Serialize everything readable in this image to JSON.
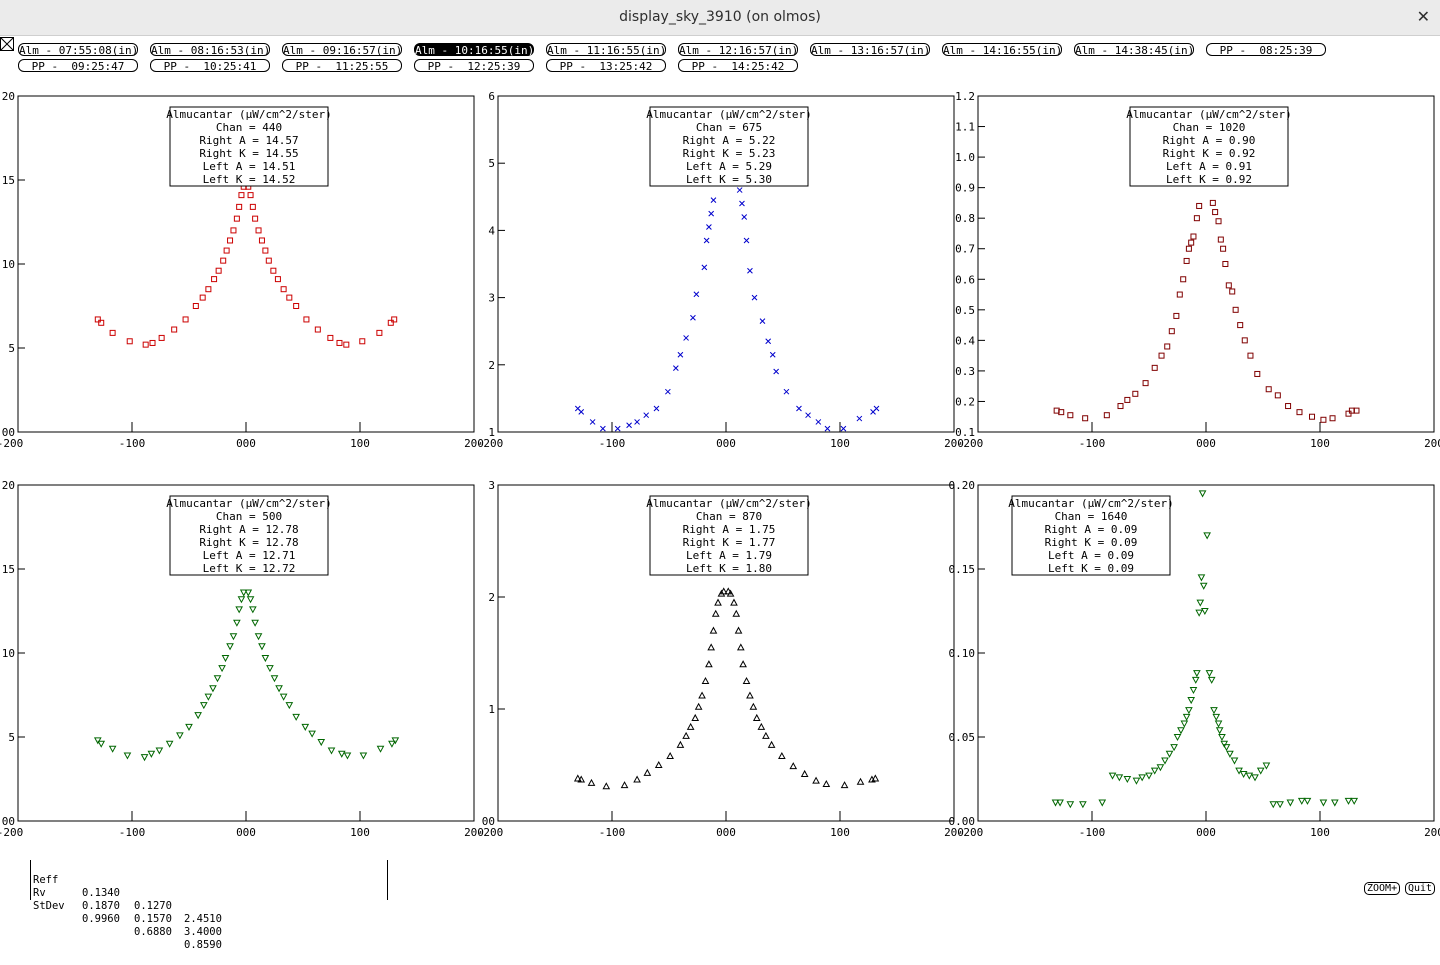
{
  "window": {
    "title": "display_sky_3910 (on olmos)"
  },
  "selector_row1": [
    "Alm - 07:55:08(in)",
    "Alm - 08:16:53(in)",
    "Alm - 09:16:57(in)",
    "Alm - 10:16:55(in)",
    "Alm - 11:16:55(in)",
    "Alm - 12:16:57(in)",
    "Alm - 13:16:57(in)",
    "Alm - 14:16:55(in)",
    "Alm - 14:38:45(in)",
    "PP -  08:25:39"
  ],
  "selector_row2": [
    "PP -  09:25:47",
    "PP -  10:25:41",
    "PP -  11:25:55",
    "PP -  12:25:39",
    "PP -  13:25:42",
    "PP -  14:25:42"
  ],
  "selected_scan": "Alm - 10:16:55(in)",
  "chart_data": [
    {
      "type": "scatter",
      "marker": "square",
      "color": "#cc0000",
      "xlim": [
        -200,
        200
      ],
      "xticks": [
        "-200",
        "-100",
        "000",
        "100",
        "200"
      ],
      "ylim": [
        0,
        20
      ],
      "yticks": [
        "00",
        "5",
        "10",
        "15",
        "20"
      ],
      "ytick_values": [
        0,
        5,
        10,
        15,
        20
      ],
      "legend": [
        "Almucantar (µW/cm^2/ster)",
        "Chan = 440",
        "Right A = 14.57",
        "Right K = 14.55",
        "Left A = 14.51",
        "Left K = 14.52"
      ],
      "x": [
        -130,
        -127,
        -117,
        -102,
        -88,
        -82,
        -74,
        -63,
        -53,
        -44,
        -38,
        -33,
        -28,
        -24,
        -20,
        -17,
        -14,
        -11,
        -8,
        -6,
        -4,
        -2,
        2,
        4,
        6,
        8,
        11,
        14,
        17,
        20,
        24,
        28,
        33,
        38,
        44,
        53,
        63,
        74,
        82,
        88,
        102,
        117,
        127,
        130
      ],
      "y": [
        6.7,
        6.5,
        5.9,
        5.4,
        5.2,
        5.3,
        5.6,
        6.1,
        6.7,
        7.5,
        8.0,
        8.5,
        9.1,
        9.6,
        10.2,
        10.8,
        11.4,
        12.0,
        12.7,
        13.4,
        14.1,
        14.6,
        14.6,
        14.1,
        13.4,
        12.7,
        12.0,
        11.4,
        10.8,
        10.2,
        9.6,
        9.1,
        8.5,
        8.0,
        7.5,
        6.7,
        6.1,
        5.6,
        5.3,
        5.2,
        5.4,
        5.9,
        6.5,
        6.7
      ]
    },
    {
      "type": "scatter",
      "marker": "x",
      "color": "#0000cc",
      "xlim": [
        -200,
        200
      ],
      "xticks": [
        "-200",
        "-100",
        "000",
        "100",
        "200"
      ],
      "ylim": [
        1,
        6
      ],
      "yticks": [
        "1",
        "2",
        "3",
        "4",
        "5",
        "6"
      ],
      "ytick_values": [
        1,
        2,
        3,
        4,
        5,
        6
      ],
      "legend": [
        "Almucantar (µW/cm^2/ster)",
        "Chan = 675",
        "Right A = 5.22",
        "Right K = 5.23",
        "Left A = 5.29",
        "Left K = 5.30"
      ],
      "x": [
        -130,
        -127,
        -117,
        -108,
        -95,
        -85,
        -78,
        -70,
        -61,
        -51,
        -44,
        -40,
        -35,
        -29,
        -26,
        -19,
        -17,
        -15,
        -13,
        -11,
        12,
        14,
        16,
        18,
        21,
        25,
        32,
        37,
        41,
        44,
        53,
        64,
        72,
        81,
        89,
        103,
        117,
        129,
        132
      ],
      "y": [
        1.35,
        1.3,
        1.15,
        1.05,
        1.05,
        1.1,
        1.15,
        1.25,
        1.35,
        1.6,
        1.95,
        2.15,
        2.4,
        2.7,
        3.05,
        3.45,
        3.85,
        4.05,
        4.25,
        4.45,
        4.6,
        4.4,
        4.2,
        3.85,
        3.4,
        3.0,
        2.65,
        2.35,
        2.15,
        1.9,
        1.6,
        1.35,
        1.25,
        1.15,
        1.05,
        1.05,
        1.2,
        1.3,
        1.35
      ]
    },
    {
      "type": "scatter",
      "marker": "square",
      "color": "#800000",
      "xlim": [
        -200,
        200
      ],
      "xticks": [
        "-200",
        "-100",
        "000",
        "100",
        "200"
      ],
      "ylim": [
        0.1,
        1.2
      ],
      "yticks": [
        "0.1",
        "0.2",
        "0.3",
        "0.4",
        "0.5",
        "0.6",
        "0.7",
        "0.8",
        "0.9",
        "1.0",
        "1.1",
        "1.2"
      ],
      "ytick_values": [
        0.1,
        0.2,
        0.3,
        0.4,
        0.5,
        0.6,
        0.7,
        0.8,
        0.9,
        1.0,
        1.1,
        1.2
      ],
      "legend": [
        "Almucantar (µW/cm^2/ster)",
        "Chan = 1020",
        "Right A = 0.90",
        "Right K = 0.92",
        "Left A = 0.91",
        "Left K = 0.92"
      ],
      "x": [
        -131,
        -127,
        -119,
        -106,
        -87,
        -75,
        -69,
        -62,
        -53,
        -45,
        -39,
        -34,
        -30,
        -26,
        -23,
        -20,
        -17,
        -15,
        -13,
        -11,
        -8,
        -6,
        6,
        8,
        11,
        13,
        15,
        17,
        20,
        23,
        26,
        30,
        34,
        39,
        45,
        55,
        63,
        72,
        82,
        93,
        103,
        111,
        125,
        128,
        132
      ],
      "y": [
        0.17,
        0.165,
        0.155,
        0.145,
        0.155,
        0.185,
        0.205,
        0.225,
        0.26,
        0.31,
        0.35,
        0.38,
        0.43,
        0.48,
        0.55,
        0.6,
        0.66,
        0.7,
        0.72,
        0.74,
        0.8,
        0.84,
        0.85,
        0.82,
        0.79,
        0.73,
        0.7,
        0.65,
        0.58,
        0.56,
        0.5,
        0.45,
        0.4,
        0.35,
        0.29,
        0.24,
        0.22,
        0.185,
        0.165,
        0.15,
        0.14,
        0.145,
        0.16,
        0.17,
        0.17
      ]
    },
    {
      "type": "scatter",
      "marker": "triangle-down",
      "color": "#006600",
      "xlim": [
        -200,
        200
      ],
      "xticks": [
        "-200",
        "-100",
        "000",
        "100",
        "200"
      ],
      "ylim": [
        0,
        20
      ],
      "yticks": [
        "00",
        "5",
        "10",
        "15",
        "20"
      ],
      "ytick_values": [
        0,
        5,
        10,
        15,
        20
      ],
      "legend": [
        "Almucantar (µW/cm^2/ster)",
        "Chan = 500",
        "Right A = 12.78",
        "Right K = 12.78",
        "Left A = 12.71",
        "Left K = 12.72"
      ],
      "x": [
        -130,
        -127,
        -117,
        -104,
        -89,
        -83,
        -76,
        -67,
        -58,
        -50,
        -42,
        -37,
        -33,
        -29,
        -25,
        -21,
        -18,
        -14,
        -11,
        -8,
        -6,
        -4,
        -2,
        2,
        4,
        6,
        8,
        11,
        14,
        17,
        21,
        25,
        29,
        33,
        38,
        44,
        52,
        58,
        66,
        75,
        84,
        89,
        103,
        118,
        128,
        131
      ],
      "y": [
        4.8,
        4.6,
        4.3,
        3.9,
        3.8,
        4.0,
        4.2,
        4.6,
        5.1,
        5.6,
        6.3,
        6.9,
        7.4,
        7.9,
        8.5,
        9.1,
        9.7,
        10.4,
        11.0,
        11.8,
        12.6,
        13.2,
        13.6,
        13.6,
        13.2,
        12.6,
        11.8,
        11.0,
        10.4,
        9.7,
        9.1,
        8.5,
        7.9,
        7.4,
        6.9,
        6.2,
        5.6,
        5.2,
        4.7,
        4.2,
        4.0,
        3.9,
        3.9,
        4.3,
        4.6,
        4.8
      ]
    },
    {
      "type": "scatter",
      "marker": "triangle-up",
      "color": "#000000",
      "xlim": [
        -200,
        200
      ],
      "xticks": [
        "-200",
        "-100",
        "000",
        "100",
        "200"
      ],
      "ylim": [
        0,
        3
      ],
      "yticks": [
        "00",
        "1",
        "2",
        "3"
      ],
      "ytick_values": [
        0,
        1,
        2,
        3
      ],
      "legend": [
        "Almucantar (µW/cm^2/ster)",
        "Chan = 870",
        "Right A = 1.75",
        "Right K = 1.77",
        "Left A = 1.79",
        "Left K = 1.80"
      ],
      "x": [
        -130,
        -127,
        -118,
        -105,
        -89,
        -78,
        -69,
        -59,
        -49,
        -40,
        -35,
        -31,
        -27,
        -24,
        -21,
        -18,
        -15,
        -13,
        -11,
        -9,
        -7,
        -4,
        -2,
        2,
        4,
        7,
        9,
        11,
        13,
        15,
        18,
        21,
        24,
        27,
        31,
        35,
        40,
        49,
        59,
        69,
        79,
        88,
        104,
        118,
        128,
        131
      ],
      "y": [
        0.38,
        0.37,
        0.34,
        0.31,
        0.32,
        0.37,
        0.43,
        0.5,
        0.58,
        0.68,
        0.76,
        0.84,
        0.92,
        1.02,
        1.12,
        1.25,
        1.4,
        1.55,
        1.7,
        1.85,
        1.95,
        2.03,
        2.05,
        2.05,
        2.03,
        1.95,
        1.85,
        1.7,
        1.55,
        1.4,
        1.25,
        1.12,
        1.02,
        0.92,
        0.84,
        0.76,
        0.68,
        0.58,
        0.49,
        0.42,
        0.36,
        0.33,
        0.32,
        0.35,
        0.37,
        0.38
      ]
    },
    {
      "type": "scatter",
      "marker": "triangle-down",
      "color": "#006600",
      "xlim": [
        -200,
        200
      ],
      "xticks": [
        "-200",
        "-100",
        "000",
        "100",
        "200"
      ],
      "ylim": [
        0,
        0.2
      ],
      "yticks": [
        "0.00",
        "0.05",
        "0.10",
        "0.15",
        "0.20"
      ],
      "ytick_values": [
        0,
        0.05,
        0.1,
        0.15,
        0.2
      ],
      "legend": [
        "Almucantar (µW/cm^2/ster)",
        "Chan = 1640",
        "Right A = 0.09",
        "Right K = 0.09",
        "Left A = 0.09",
        "Left K = 0.09"
      ],
      "x": [
        -132,
        -128,
        -119,
        -108,
        -91,
        -82,
        -76,
        -69,
        -61,
        -56,
        -50,
        -45,
        -40,
        -36,
        -32,
        -28,
        -25,
        -22,
        -19,
        -17,
        -15,
        -13,
        -11,
        -9,
        -8,
        -6,
        -5,
        -4,
        -3,
        -2,
        -1,
        1,
        3,
        5,
        7,
        9,
        11,
        12,
        14,
        16,
        18,
        21,
        25,
        29,
        33,
        38,
        43,
        48,
        53,
        59,
        65,
        74,
        84,
        89,
        103,
        113,
        125,
        130
      ],
      "y": [
        0.011,
        0.011,
        0.01,
        0.01,
        0.011,
        0.027,
        0.026,
        0.025,
        0.024,
        0.026,
        0.027,
        0.03,
        0.032,
        0.036,
        0.04,
        0.044,
        0.05,
        0.054,
        0.058,
        0.062,
        0.066,
        0.072,
        0.078,
        0.084,
        0.088,
        0.124,
        0.13,
        0.145,
        0.195,
        0.14,
        0.125,
        0.17,
        0.088,
        0.084,
        0.066,
        0.062,
        0.058,
        0.054,
        0.05,
        0.046,
        0.044,
        0.04,
        0.036,
        0.03,
        0.028,
        0.027,
        0.026,
        0.03,
        0.033,
        0.01,
        0.01,
        0.011,
        0.012,
        0.012,
        0.011,
        0.011,
        0.012,
        0.012
      ]
    }
  ],
  "stats": {
    "rows": [
      {
        "label": "Reff",
        "v1": "0.1340",
        "v2": "0.1270",
        "v3": "2.4510"
      },
      {
        "label": "Rv",
        "v1": "0.1870",
        "v2": "0.1570",
        "v3": "3.4000"
      },
      {
        "label": "StDev",
        "v1": "0.9960",
        "v2": "0.6880",
        "v3": "0.8590"
      }
    ]
  },
  "buttons": {
    "zoom": "ZOOM+",
    "quit": "Quit"
  }
}
